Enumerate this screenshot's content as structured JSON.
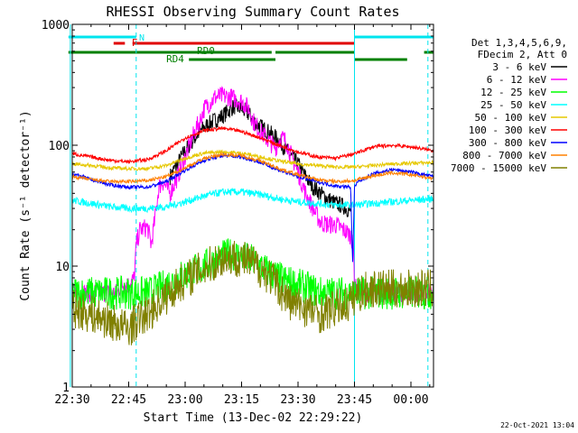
{
  "chart_data": {
    "type": "line",
    "title": "RHESSI Observing Summary Count Rates",
    "xlabel": "Start Time (13-Dec-02 22:29:22)",
    "ylabel": "Count Rate (s⁻¹ detector⁻¹)",
    "yscale": "log",
    "ylim": [
      1,
      1000
    ],
    "xlim_minutes_after_2230": [
      0,
      96
    ],
    "x_ticks": [
      "22:30",
      "22:45",
      "23:00",
      "23:15",
      "23:30",
      "23:45",
      "00:00"
    ],
    "x_tick_minutes": [
      0,
      15,
      30,
      45,
      60,
      75,
      90
    ],
    "y_ticks": [
      "1",
      "10",
      "100",
      "1000"
    ],
    "y_tick_values": [
      1,
      10,
      100,
      1000
    ],
    "grid": false,
    "legend_position": "right",
    "legend_header": [
      "Det 1,3,4,5,6,9,",
      "FDecim 2, Att 0"
    ],
    "annotations": {
      "n": "N",
      "f": "F",
      "rd0": "RD0",
      "rd4": "RD4",
      "timestamp": "22-Oct-2021 13:04"
    },
    "flags": [
      {
        "label": "N",
        "color": "#00e5ee",
        "segments": [
          [
            -1,
            17
          ],
          [
            75,
            96
          ]
        ]
      },
      {
        "label": "F",
        "color": "#e00000",
        "segments": [
          [
            11,
            14
          ],
          [
            16,
            75
          ]
        ]
      },
      {
        "label": "RD0",
        "color": "#008000",
        "segments": [
          [
            -1,
            53
          ],
          [
            54,
            75
          ],
          [
            93.5,
            96
          ]
        ]
      },
      {
        "label": "RD4",
        "color": "#008000",
        "segments": [
          [
            31,
            54
          ],
          [
            75,
            89
          ]
        ]
      }
    ],
    "vertical_markers": [
      {
        "minute": -0.5,
        "style": "solid",
        "color": "#00e5ee"
      },
      {
        "minute": 17,
        "style": "dashed",
        "color": "#00e5ee"
      },
      {
        "minute": 75,
        "style": "solid",
        "color": "#00e5ee"
      },
      {
        "minute": 94.5,
        "style": "dashed",
        "color": "#00e5ee"
      }
    ],
    "series": [
      {
        "name": "3 - 6 keV",
        "color": "#000000",
        "noise": 0.07,
        "x": [
          26,
          30,
          33,
          35,
          37,
          40,
          43,
          45,
          47,
          49,
          52,
          55,
          57,
          60,
          62,
          64,
          66,
          68,
          70,
          71.5,
          73,
          74
        ],
        "y": [
          55,
          90,
          120,
          140,
          155,
          175,
          210,
          200,
          180,
          150,
          130,
          110,
          90,
          70,
          55,
          45,
          40,
          36,
          33,
          32,
          30,
          28
        ]
      },
      {
        "name": "6 - 12 keV",
        "color": "#ff00ff",
        "noise": 0.08,
        "x": [
          0,
          11,
          12,
          13,
          15,
          16.5,
          17,
          18,
          20,
          21,
          22,
          23,
          24,
          25,
          26,
          28,
          30,
          33,
          34,
          35,
          38,
          40,
          42,
          45,
          47,
          48,
          50,
          52,
          54,
          55,
          56,
          57,
          58,
          60,
          62,
          64,
          66,
          68,
          70,
          72,
          74,
          74.7,
          75,
          76,
          96
        ],
        "y": [
          6,
          6,
          6,
          7,
          7,
          8,
          15,
          20,
          21,
          15,
          25,
          45,
          50,
          45,
          40,
          55,
          80,
          140,
          160,
          200,
          250,
          255,
          250,
          230,
          200,
          160,
          130,
          110,
          95,
          110,
          115,
          105,
          85,
          60,
          40,
          30,
          23,
          22,
          22,
          20,
          18,
          15,
          7,
          6,
          6
        ]
      },
      {
        "name": "12 - 25 keV",
        "color": "#00ff00",
        "noise": 0.14,
        "x": [
          0,
          10,
          17,
          20,
          23,
          25,
          28,
          32,
          35,
          38,
          40,
          42,
          45,
          48,
          50,
          52,
          55,
          57,
          60,
          63,
          66,
          70,
          75,
          96
        ],
        "y": [
          6,
          6,
          6,
          6,
          6.5,
          7,
          8,
          9,
          10,
          11,
          12,
          12.5,
          12,
          11,
          10,
          9,
          8,
          7.5,
          7,
          6.5,
          6,
          6,
          6,
          6
        ]
      },
      {
        "name": "25 - 50 keV",
        "color": "#00ffff",
        "noise": 0.03,
        "x": [
          0,
          5,
          10,
          15,
          20,
          25,
          30,
          35,
          40,
          45,
          50,
          55,
          60,
          65,
          70,
          75,
          80,
          85,
          90,
          96
        ],
        "y": [
          35,
          33,
          31,
          30,
          30,
          31,
          34,
          38,
          41,
          41,
          39,
          36,
          34,
          33,
          32,
          32,
          33,
          34,
          35,
          36
        ]
      },
      {
        "name": "50 - 100 keV",
        "color": "#e6c800",
        "noise": 0.015,
        "x": [
          0,
          5,
          10,
          15,
          20,
          25,
          30,
          35,
          40,
          45,
          50,
          55,
          60,
          65,
          70,
          75,
          80,
          85,
          90,
          96
        ],
        "y": [
          70,
          68,
          65,
          64,
          64,
          68,
          78,
          86,
          88,
          86,
          80,
          74,
          70,
          68,
          66,
          66,
          68,
          70,
          71,
          72
        ]
      },
      {
        "name": "100 - 300 keV",
        "color": "#ff0000",
        "noise": 0.015,
        "x": [
          0,
          5,
          10,
          15,
          20,
          25,
          30,
          35,
          40,
          45,
          50,
          55,
          60,
          65,
          70,
          75,
          80,
          85,
          90,
          96
        ],
        "y": [
          85,
          80,
          75,
          73,
          76,
          90,
          115,
          132,
          138,
          130,
          115,
          100,
          88,
          80,
          78,
          85,
          97,
          100,
          97,
          90
        ]
      },
      {
        "name": "300 - 800 keV",
        "color": "#0000ff",
        "noise": 0.015,
        "x": [
          0,
          5,
          10,
          15,
          20,
          25,
          30,
          35,
          40,
          45,
          50,
          55,
          60,
          65,
          70,
          74,
          74.5,
          75,
          76,
          80,
          85,
          90,
          96
        ],
        "y": [
          58,
          52,
          47,
          45,
          45,
          50,
          62,
          75,
          82,
          80,
          72,
          62,
          55,
          50,
          46,
          45,
          10,
          45,
          50,
          58,
          63,
          60,
          55
        ]
      },
      {
        "name": "800 - 7000 keV",
        "color": "#ff8000",
        "noise": 0.015,
        "x": [
          0,
          5,
          10,
          15,
          20,
          25,
          30,
          35,
          40,
          45,
          50,
          55,
          60,
          65,
          70,
          75,
          80,
          85,
          90,
          96
        ],
        "y": [
          55,
          52,
          50,
          50,
          51,
          55,
          65,
          78,
          84,
          82,
          74,
          64,
          57,
          52,
          50,
          51,
          56,
          59,
          57,
          53
        ]
      },
      {
        "name": "7000 - 15000 keV",
        "color": "#808000",
        "noise": 0.16,
        "x": [
          0,
          5,
          10,
          15,
          17,
          20,
          23,
          26,
          28,
          32,
          36,
          40,
          42,
          45,
          48,
          50,
          53,
          55,
          58,
          62,
          66,
          70,
          74,
          76,
          80,
          85,
          90,
          96
        ],
        "y": [
          4.5,
          4,
          3.5,
          3,
          3.5,
          4,
          5,
          6,
          7,
          8.5,
          10,
          11.5,
          12,
          11.5,
          10.5,
          9.5,
          8,
          6.5,
          5,
          4.5,
          4,
          4.5,
          5,
          6,
          6.5,
          6.5,
          6.5,
          6.5
        ]
      }
    ]
  }
}
